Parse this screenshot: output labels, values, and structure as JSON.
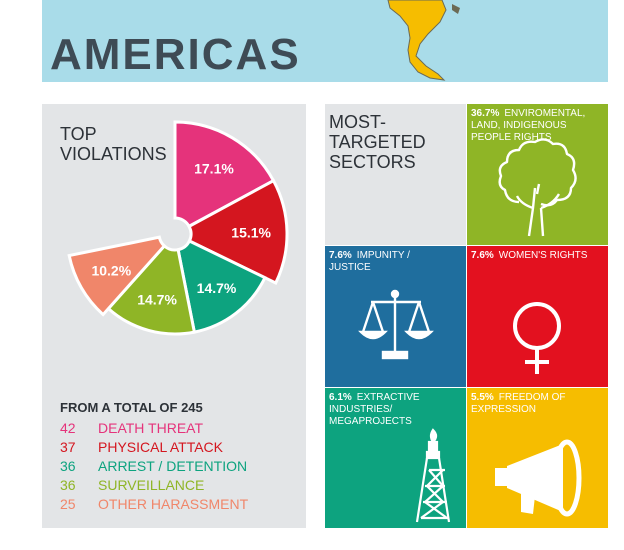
{
  "banner": {
    "title": "AMERICAS"
  },
  "violations": {
    "title": "TOP\nVIOLATIONS",
    "total_label": "FROM A TOTAL OF 245"
  },
  "chart_data": {
    "type": "pie",
    "slices": [
      {
        "label": "DEATH THREAT",
        "count": "42",
        "percent": 17.1,
        "percent_label": "17.1%",
        "color": "#e5337b"
      },
      {
        "label": "PHYSICAL ATTACK",
        "count": "37",
        "percent": 15.1,
        "percent_label": "15.1%",
        "color": "#d4161f"
      },
      {
        "label": "ARREST / DETENTION",
        "count": "36",
        "percent": 14.7,
        "percent_label": "14.7%",
        "color": "#0da37f"
      },
      {
        "label": "SURVEILLANCE",
        "count": "36",
        "percent": 14.7,
        "percent_label": "14.7%",
        "color": "#8fb526"
      },
      {
        "label": "OTHER HARASSMENT",
        "count": "25",
        "percent": 10.2,
        "percent_label": "10.2%",
        "color": "#f0866a"
      }
    ]
  },
  "sectors": {
    "title": "MOST-\nTARGETED\nSECTORS",
    "tiles": [
      {
        "percent": "36.7%",
        "label": "ENVIROMENTAL,\nLAND, INDIGENOUS\nPEOPLE RIGHTS",
        "icon": "tree-icon",
        "color": "#8fb526"
      },
      {
        "percent": "7.6%",
        "label": "IMPUNITY /\nJUSTICE",
        "icon": "scales-icon",
        "color": "#1f6e9e"
      },
      {
        "percent": "7.6%",
        "label": "WOMEN'S RIGHTS",
        "icon": "female-symbol-icon",
        "color": "#e3111f"
      },
      {
        "percent": "6.1%",
        "label": "EXTRACTIVE\nINDUSTRIES/\nMEGAPROJECTS",
        "icon": "oil-rig-icon",
        "color": "#0da37f"
      },
      {
        "percent": "5.5%",
        "label": "FREEDOM OF\nEXPRESSION",
        "icon": "megaphone-icon",
        "color": "#f6bd00"
      }
    ]
  }
}
